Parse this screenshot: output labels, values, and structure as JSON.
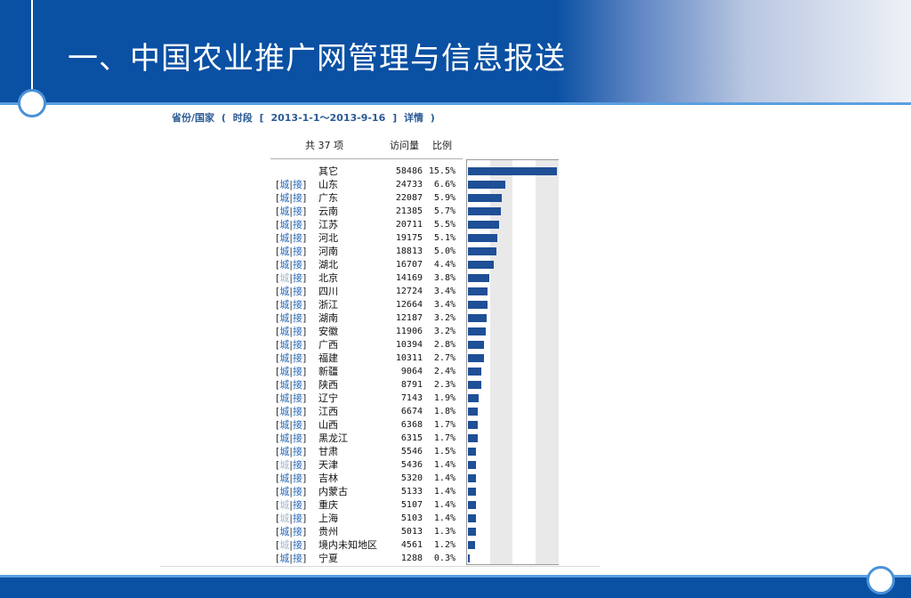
{
  "slide": {
    "title": "一、中国农业推广网管理与信息报送"
  },
  "report": {
    "province_label": "省份/国家",
    "open_paren": "(",
    "period_label": "时段",
    "open_bracket": "[",
    "date_range": "2013-1-1～2013-9-16",
    "close_bracket": "]",
    "details_link": "详情",
    "close_paren": ")"
  },
  "columns": {
    "total": "共 37 项",
    "visits": "访问量",
    "ratio": "比例"
  },
  "link_labels": {
    "open": "[",
    "city": "城",
    "sep": "|",
    "access": "接",
    "close": "]"
  },
  "chart_data": {
    "type": "bar",
    "orientation": "horizontal",
    "xlim": [
      0,
      58486
    ],
    "rows": [
      {
        "name": "其它",
        "visits": 58486,
        "pct": "15.5%",
        "links": false
      },
      {
        "name": "山东",
        "visits": 24733,
        "pct": "6.6%",
        "links": true
      },
      {
        "name": "广东",
        "visits": 22087,
        "pct": "5.9%",
        "links": true
      },
      {
        "name": "云南",
        "visits": 21385,
        "pct": "5.7%",
        "links": true
      },
      {
        "name": "江苏",
        "visits": 20711,
        "pct": "5.5%",
        "links": true
      },
      {
        "name": "河北",
        "visits": 19175,
        "pct": "5.1%",
        "links": true
      },
      {
        "name": "河南",
        "visits": 18813,
        "pct": "5.0%",
        "links": true
      },
      {
        "name": "湖北",
        "visits": 16707,
        "pct": "4.4%",
        "links": true
      },
      {
        "name": "北京",
        "visits": 14169,
        "pct": "3.8%",
        "links": true,
        "city_dim": true
      },
      {
        "name": "四川",
        "visits": 12724,
        "pct": "3.4%",
        "links": true
      },
      {
        "name": "浙江",
        "visits": 12664,
        "pct": "3.4%",
        "links": true
      },
      {
        "name": "湖南",
        "visits": 12187,
        "pct": "3.2%",
        "links": true
      },
      {
        "name": "安徽",
        "visits": 11906,
        "pct": "3.2%",
        "links": true
      },
      {
        "name": "广西",
        "visits": 10394,
        "pct": "2.8%",
        "links": true
      },
      {
        "name": "福建",
        "visits": 10311,
        "pct": "2.7%",
        "links": true
      },
      {
        "name": "新疆",
        "visits": 9064,
        "pct": "2.4%",
        "links": true
      },
      {
        "name": "陕西",
        "visits": 8791,
        "pct": "2.3%",
        "links": true
      },
      {
        "name": "辽宁",
        "visits": 7143,
        "pct": "1.9%",
        "links": true
      },
      {
        "name": "江西",
        "visits": 6674,
        "pct": "1.8%",
        "links": true
      },
      {
        "name": "山西",
        "visits": 6368,
        "pct": "1.7%",
        "links": true
      },
      {
        "name": "黑龙江",
        "visits": 6315,
        "pct": "1.7%",
        "links": true
      },
      {
        "name": "甘肃",
        "visits": 5546,
        "pct": "1.5%",
        "links": true
      },
      {
        "name": "天津",
        "visits": 5436,
        "pct": "1.4%",
        "links": true,
        "city_dim": true
      },
      {
        "name": "吉林",
        "visits": 5320,
        "pct": "1.4%",
        "links": true
      },
      {
        "name": "内蒙古",
        "visits": 5133,
        "pct": "1.4%",
        "links": true
      },
      {
        "name": "重庆",
        "visits": 5107,
        "pct": "1.4%",
        "links": true,
        "city_dim": true
      },
      {
        "name": "上海",
        "visits": 5103,
        "pct": "1.4%",
        "links": true,
        "city_dim": true
      },
      {
        "name": "贵州",
        "visits": 5013,
        "pct": "1.3%",
        "links": true
      },
      {
        "name": "境内未知地区",
        "visits": 4561,
        "pct": "1.2%",
        "links": true,
        "city_dim": true
      },
      {
        "name": "宁夏",
        "visits": 1288,
        "pct": "0.3%",
        "links": true
      }
    ],
    "bar_color": "#1f4f96"
  },
  "colors": {
    "header_blue": "#0a50a3",
    "accent_line": "#5b9fe0",
    "link_blue": "#2a6ab8",
    "title_blue": "#2a5a94"
  }
}
